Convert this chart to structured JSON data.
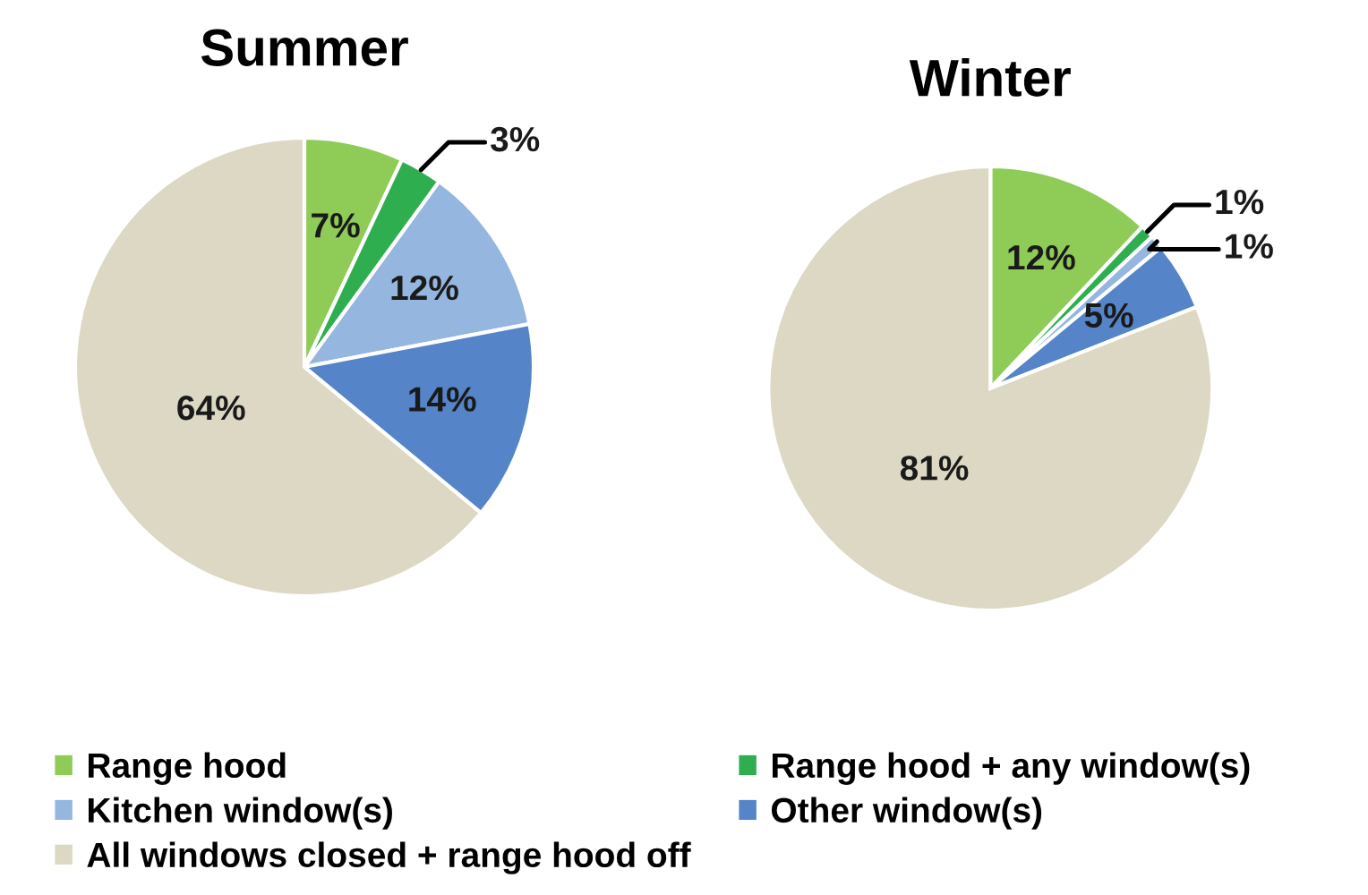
{
  "chart_data": {
    "type": "pie",
    "categories": [
      "Range hood",
      "Range hood + any window(s)",
      "Kitchen window(s)",
      "Other window(s)",
      "All windows closed + range hood off"
    ],
    "colors": [
      "#8fcc57",
      "#2eae4e",
      "#95b6de",
      "#5585c8",
      "#ddd8c4"
    ],
    "series": [
      {
        "name": "Summer",
        "values": [
          7,
          3,
          12,
          14,
          64
        ],
        "value_labels": [
          "7%",
          "3%",
          "12%",
          "14%",
          "64%"
        ]
      },
      {
        "name": "Winter",
        "values": [
          12,
          1,
          1,
          5,
          81
        ],
        "value_labels": [
          "12%",
          "1%",
          "1%",
          "5%",
          "81%"
        ]
      }
    ],
    "legend": "bottom"
  }
}
